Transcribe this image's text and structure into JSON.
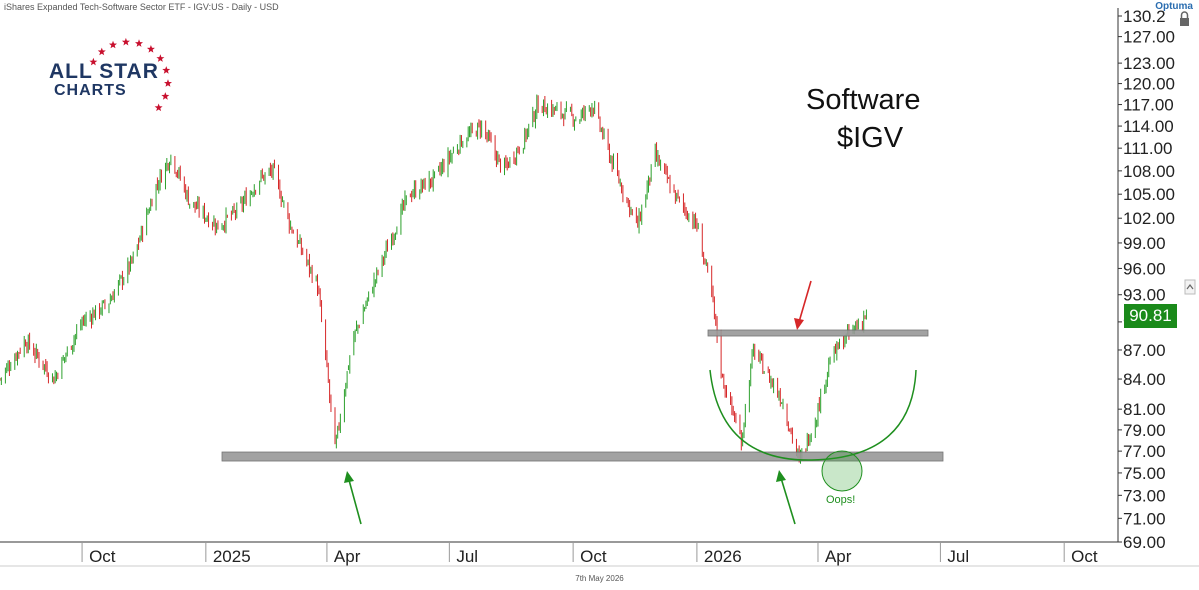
{
  "header": {
    "text": "iShares Expanded Tech-Software Sector ETF - IGV:US - Daily - USD",
    "brand": "Optuma"
  },
  "footer": {
    "date": "7th May 2026"
  },
  "logo": {
    "line1": "ALL STAR",
    "line2": "CHARTS",
    "star-icon": "star-icon"
  },
  "title": {
    "line1": "Software",
    "line2": "$IGV"
  },
  "annotation": {
    "oops": "Oops!"
  },
  "last_price": "90.81",
  "colors": {
    "up": "#2ca02c",
    "down": "#d62728",
    "level": "#8c8c8c",
    "arrow_red": "#d62728",
    "arrow_green": "#1f8f1f",
    "badge": "#1a8a1a"
  },
  "chart_data": {
    "type": "candlestick",
    "title": "Software $IGV",
    "ylim": [
      69,
      130.2
    ],
    "y_ticks": [
      "69.00",
      "71.00",
      "73.00",
      "75.00",
      "77.00",
      "79.00",
      "81.00",
      "84.00",
      "87.00",
      "90.00",
      "93.00",
      "96.00",
      "99.00",
      "102.00",
      "105.00",
      "108.00",
      "111.00",
      "114.00",
      "117.00",
      "120.00",
      "123.00",
      "127.00",
      "130.2"
    ],
    "x_ticks": [
      "Oct",
      "2025",
      "Apr",
      "Jul",
      "Oct",
      "2026",
      "Apr",
      "Jul",
      "Oct"
    ],
    "grid": false,
    "price_path": [
      [
        "2024-08-01",
        84
      ],
      [
        "2024-08-20",
        88
      ],
      [
        "2024-09-10",
        84
      ],
      [
        "2024-10-01",
        90
      ],
      [
        "2024-10-20",
        92
      ],
      [
        "2024-11-08",
        97
      ],
      [
        "2024-11-25",
        106
      ],
      [
        "2024-12-06",
        110
      ],
      [
        "2024-12-20",
        104
      ],
      [
        "2025-01-10",
        101
      ],
      [
        "2025-01-25",
        103
      ],
      [
        "2025-02-10",
        107
      ],
      [
        "2025-02-20",
        108
      ],
      [
        "2025-03-05",
        101
      ],
      [
        "2025-03-25",
        94
      ],
      [
        "2025-04-07",
        77
      ],
      [
        "2025-04-20",
        88
      ],
      [
        "2025-05-10",
        96
      ],
      [
        "2025-06-01",
        105
      ],
      [
        "2025-06-20",
        107
      ],
      [
        "2025-07-10",
        112
      ],
      [
        "2025-07-25",
        114
      ],
      [
        "2025-08-10",
        108
      ],
      [
        "2025-08-25",
        112
      ],
      [
        "2025-09-05",
        117
      ],
      [
        "2025-09-20",
        116
      ],
      [
        "2025-10-05",
        115
      ],
      [
        "2025-10-15",
        117
      ],
      [
        "2025-11-01",
        108
      ],
      [
        "2025-11-18",
        101
      ],
      [
        "2025-12-01",
        110
      ],
      [
        "2025-12-15",
        105
      ],
      [
        "2026-01-01",
        101
      ],
      [
        "2026-01-12",
        93
      ],
      [
        "2026-01-20",
        84
      ],
      [
        "2026-02-03",
        78
      ],
      [
        "2026-02-12",
        87
      ],
      [
        "2026-02-20",
        85
      ],
      [
        "2026-03-05",
        82
      ],
      [
        "2026-03-18",
        76
      ],
      [
        "2026-03-30",
        80
      ],
      [
        "2026-04-10",
        86
      ],
      [
        "2026-04-20",
        88
      ],
      [
        "2026-05-07",
        90.81
      ]
    ],
    "levels": [
      {
        "price": 76.5,
        "from": "2024-12-20",
        "to": "2026-05-31"
      },
      {
        "price": 88.8,
        "from": "2026-01-01",
        "to": "2026-05-31"
      }
    ],
    "last": 90.81
  }
}
